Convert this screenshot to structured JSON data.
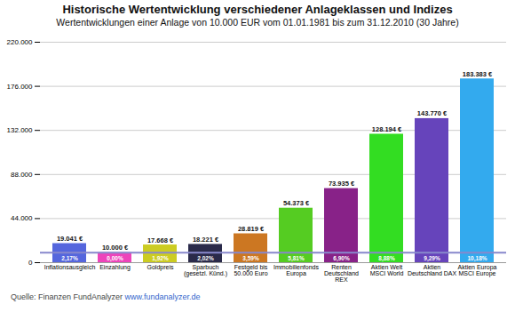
{
  "chart_data": {
    "type": "bar",
    "title": "Historische Wertentwicklung verschiedener Anlageklassen und Indizes",
    "subtitle": "Wertentwicklungen einer Anlage von 10.000 EUR vom 01.01.1981 bis zum 31.12.2010 (30 Jahre)",
    "categories": [
      "Inflationsausgleich",
      "Einzahlung",
      "Goldpreis",
      "Sparbuch\n(gesetzl. Künd.)",
      "Festgeld bis\n50.000 Euro",
      "Immobilienfonds\nEuropa",
      "Renten\nDeutschland\nREX",
      "Aktien Welt\nMSCI World",
      "Aktien\nDeutschland DAX",
      "Aktien Europa\nMSCI Europe"
    ],
    "values": [
      19041,
      10000,
      17668,
      18221,
      28819,
      54373,
      73935,
      128194,
      143770,
      183383
    ],
    "value_labels": [
      "19.041 €",
      "10.000 €",
      "17.668 €",
      "18.221 €",
      "28.819 €",
      "54.373 €",
      "73.935 €",
      "128.194 €",
      "143.770 €",
      "183.383 €"
    ],
    "pct_labels": [
      "2,17%",
      "0,00%",
      "1,92%",
      "2,02%",
      "3,59%",
      "5,81%",
      "6,90%",
      "8,88%",
      "9,29%",
      "10,18%"
    ],
    "colors": [
      "#5566dd",
      "#ee44bb",
      "#cccc22",
      "#2a2a4a",
      "#cc7722",
      "#55cc22",
      "#882288",
      "#33dd22",
      "#6644bb",
      "#33aaee"
    ],
    "hline": {
      "value": 10000,
      "color": "#8888cc"
    },
    "ylim": [
      0,
      220000
    ],
    "yticks": [
      0,
      {
        "value": 44000,
        "label": "44.000"
      },
      {
        "value": 88000,
        "label": "88.000"
      },
      {
        "value": 132000,
        "label": "132.000"
      },
      {
        "value": 176000,
        "label": "176.000"
      },
      {
        "value": 220000,
        "label": "220.000"
      }
    ],
    "grid": true,
    "data_labels": true,
    "source": "Quelle: Finanzen FundAnalyzer ",
    "source_link": "www.fundanalyzer.de"
  }
}
